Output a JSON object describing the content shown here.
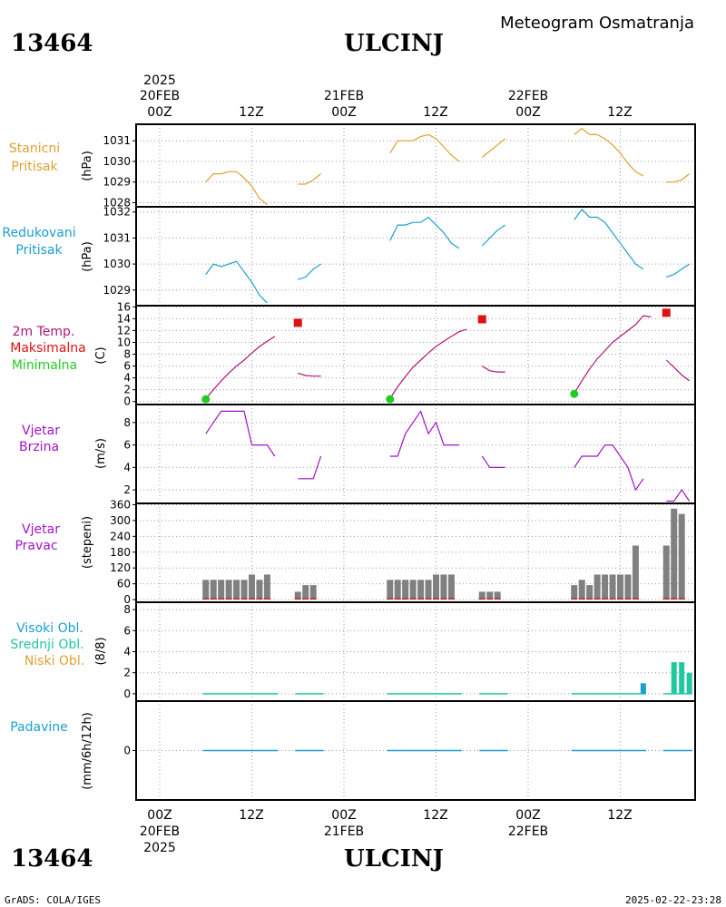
{
  "header": {
    "station_id": "13464",
    "station_name": "ULCINJ",
    "product": "Meteogram Osmatranja"
  },
  "footer": {
    "credit": "GrADS: COLA/IGES",
    "timestamp": "2025-02-22-23:28"
  },
  "time_axis": {
    "year": "2025",
    "days": [
      "20FEB",
      "21FEB",
      "22FEB"
    ],
    "tick_labels": [
      "00Z",
      "12Z",
      "00Z",
      "12Z",
      "00Z",
      "12Z"
    ]
  },
  "colors": {
    "pressure_station": "#e0a030",
    "pressure_reduced": "#1aa0d0",
    "temp_line": "#b0147a",
    "temp_max": "#e01010",
    "temp_min": "#22cc22",
    "wind": "#a014c8",
    "dir_bar": "#808080",
    "dir_base": "#c03030",
    "cloud_high": "#1aa0d0",
    "cloud_mid": "#20c8a0",
    "cloud_low": "#e0a030",
    "precip": "#1aa0d0"
  },
  "panels": {
    "p1": {
      "labels": [
        "Stanicni",
        "Pritisak"
      ],
      "unit": "(hPa)"
    },
    "p2": {
      "labels": [
        "Redukovani",
        "Pritisak"
      ],
      "unit": "(hPa)"
    },
    "p3": {
      "labels": [
        "2m Temp.",
        "Maksimalna",
        "Minimalna"
      ],
      "unit": "(C)"
    },
    "p4": {
      "labels": [
        "Vjetar",
        "Brzina"
      ],
      "unit": "(m/s)"
    },
    "p5": {
      "labels": [
        "Vjetar",
        "Pravac"
      ],
      "unit": "(stepeni)"
    },
    "p6": {
      "labels": [
        "Visoki Obl.",
        "Srednji Obl.",
        "Niski Obl."
      ],
      "unit": "(8/8)"
    },
    "p7": {
      "labels": [
        "Padavine"
      ],
      "unit": "(mm/6h/12h)"
    }
  },
  "chart_data": [
    {
      "type": "line",
      "title": "Stanicni Pritisak",
      "ylabel": "(hPa)",
      "ylim": [
        1027.8,
        1031.8
      ],
      "yticks": [
        1028,
        1029,
        1030,
        1031
      ],
      "x_unit": "hours since 20FEB 00Z",
      "segments": [
        [
          [
            6,
            1029.0
          ],
          [
            7,
            1029.4
          ],
          [
            8,
            1029.4
          ],
          [
            9,
            1029.5
          ],
          [
            10,
            1029.5
          ],
          [
            11,
            1029.2
          ],
          [
            12,
            1028.8
          ],
          [
            13,
            1028.2
          ],
          [
            14,
            1027.9
          ]
        ],
        [
          [
            18,
            1028.9
          ],
          [
            19,
            1028.9
          ],
          [
            20,
            1029.1
          ],
          [
            21,
            1029.4
          ]
        ],
        [
          [
            30,
            1030.4
          ],
          [
            31,
            1031.0
          ],
          [
            32,
            1031.0
          ],
          [
            33,
            1031.0
          ],
          [
            34,
            1031.2
          ],
          [
            35,
            1031.3
          ],
          [
            36,
            1031.1
          ],
          [
            37,
            1030.7
          ],
          [
            38,
            1030.3
          ],
          [
            39,
            1030.0
          ]
        ],
        [
          [
            42,
            1030.2
          ],
          [
            43,
            1030.5
          ],
          [
            44,
            1030.8
          ],
          [
            45,
            1031.1
          ]
        ],
        [
          [
            54,
            1031.3
          ],
          [
            55,
            1031.6
          ],
          [
            56,
            1031.3
          ],
          [
            57,
            1031.3
          ],
          [
            58,
            1031.1
          ],
          [
            59,
            1030.8
          ],
          [
            60,
            1030.4
          ],
          [
            61,
            1029.9
          ],
          [
            62,
            1029.5
          ],
          [
            63,
            1029.3
          ]
        ],
        [
          [
            66,
            1029.0
          ],
          [
            67,
            1029.0
          ],
          [
            68,
            1029.1
          ],
          [
            69,
            1029.4
          ]
        ]
      ]
    },
    {
      "type": "line",
      "title": "Redukovani Pritisak",
      "ylabel": "(hPa)",
      "ylim": [
        1028.4,
        1032.2
      ],
      "yticks": [
        1029,
        1030,
        1031,
        1032
      ],
      "x_unit": "hours since 20FEB 00Z",
      "segments": [
        [
          [
            6,
            1029.6
          ],
          [
            7,
            1030.0
          ],
          [
            8,
            1029.9
          ],
          [
            9,
            1030.0
          ],
          [
            10,
            1030.1
          ],
          [
            11,
            1029.7
          ],
          [
            12,
            1029.3
          ],
          [
            13,
            1028.8
          ],
          [
            14,
            1028.5
          ]
        ],
        [
          [
            18,
            1029.4
          ],
          [
            19,
            1029.5
          ],
          [
            20,
            1029.8
          ],
          [
            21,
            1030.0
          ]
        ],
        [
          [
            30,
            1030.9
          ],
          [
            31,
            1031.5
          ],
          [
            32,
            1031.5
          ],
          [
            33,
            1031.6
          ],
          [
            34,
            1031.6
          ],
          [
            35,
            1031.8
          ],
          [
            36,
            1031.5
          ],
          [
            37,
            1031.2
          ],
          [
            38,
            1030.8
          ],
          [
            39,
            1030.6
          ]
        ],
        [
          [
            42,
            1030.7
          ],
          [
            43,
            1031.0
          ],
          [
            44,
            1031.3
          ],
          [
            45,
            1031.5
          ]
        ],
        [
          [
            54,
            1031.7
          ],
          [
            55,
            1032.1
          ],
          [
            56,
            1031.8
          ],
          [
            57,
            1031.8
          ],
          [
            58,
            1031.6
          ],
          [
            59,
            1031.2
          ],
          [
            60,
            1030.8
          ],
          [
            61,
            1030.4
          ],
          [
            62,
            1030.0
          ],
          [
            63,
            1029.8
          ]
        ],
        [
          [
            66,
            1029.5
          ],
          [
            67,
            1029.6
          ],
          [
            68,
            1029.8
          ],
          [
            69,
            1030.0
          ]
        ]
      ]
    },
    {
      "type": "line",
      "title": "2m Temp.",
      "ylabel": "(C)",
      "ylim": [
        -0.5,
        16.2
      ],
      "yticks": [
        0,
        2,
        4,
        6,
        8,
        10,
        12,
        14,
        16
      ],
      "x_unit": "hours since 20FEB 00Z",
      "segments": [
        [
          [
            6,
            0.5
          ],
          [
            7,
            2.0
          ],
          [
            8,
            3.5
          ],
          [
            9,
            4.8
          ],
          [
            10,
            6.0
          ],
          [
            11,
            7.0
          ],
          [
            12,
            8.2
          ],
          [
            13,
            9.3
          ],
          [
            14,
            10.2
          ],
          [
            15,
            11.0
          ]
        ],
        [
          [
            18,
            4.8
          ],
          [
            19,
            4.4
          ],
          [
            20,
            4.3
          ],
          [
            21,
            4.3
          ]
        ],
        [
          [
            30,
            0.5
          ],
          [
            31,
            2.5
          ],
          [
            32,
            4.2
          ],
          [
            33,
            5.8
          ],
          [
            34,
            7.0
          ],
          [
            35,
            8.2
          ],
          [
            36,
            9.3
          ],
          [
            37,
            10.2
          ],
          [
            38,
            11.0
          ],
          [
            39,
            11.8
          ],
          [
            40,
            12.2
          ]
        ],
        [
          [
            42,
            6.0
          ],
          [
            43,
            5.2
          ],
          [
            44,
            5.0
          ],
          [
            45,
            5.0
          ]
        ],
        [
          [
            54,
            1.4
          ],
          [
            55,
            3.5
          ],
          [
            56,
            5.5
          ],
          [
            57,
            7.2
          ],
          [
            58,
            8.6
          ],
          [
            59,
            10.0
          ],
          [
            60,
            11.0
          ],
          [
            61,
            12.0
          ],
          [
            62,
            13.0
          ],
          [
            63,
            14.5
          ],
          [
            64,
            14.3
          ]
        ],
        [
          [
            66,
            7.0
          ],
          [
            67,
            5.8
          ],
          [
            68,
            4.5
          ],
          [
            69,
            3.5
          ]
        ]
      ],
      "maxima": [
        [
          18,
          13.3
        ],
        [
          42,
          13.9
        ],
        [
          66,
          15.0
        ]
      ],
      "minima": [
        [
          6,
          0.4
        ],
        [
          30,
          0.4
        ],
        [
          54,
          1.3
        ]
      ]
    },
    {
      "type": "line",
      "title": "Vjetar Brzina",
      "ylabel": "(m/s)",
      "ylim": [
        0.8,
        9.6
      ],
      "yticks": [
        2,
        4,
        6,
        8
      ],
      "x_unit": "hours since 20FEB 00Z",
      "segments": [
        [
          [
            6,
            7
          ],
          [
            7,
            8
          ],
          [
            8,
            9
          ],
          [
            9,
            9
          ],
          [
            10,
            9
          ],
          [
            11,
            9
          ],
          [
            12,
            6
          ],
          [
            13,
            6
          ],
          [
            14,
            6
          ],
          [
            15,
            5
          ]
        ],
        [
          [
            18,
            3
          ],
          [
            19,
            3
          ],
          [
            20,
            3
          ],
          [
            21,
            5
          ]
        ],
        [
          [
            30,
            5
          ],
          [
            31,
            5
          ],
          [
            32,
            7
          ],
          [
            33,
            8
          ],
          [
            34,
            9
          ],
          [
            35,
            7
          ],
          [
            36,
            8
          ],
          [
            37,
            6
          ],
          [
            38,
            6
          ],
          [
            39,
            6
          ]
        ],
        [
          [
            42,
            5
          ],
          [
            43,
            4
          ],
          [
            44,
            4
          ],
          [
            45,
            4
          ]
        ],
        [
          [
            54,
            4
          ],
          [
            55,
            5
          ],
          [
            56,
            5
          ],
          [
            57,
            5
          ],
          [
            58,
            6
          ],
          [
            59,
            6
          ],
          [
            60,
            5
          ],
          [
            61,
            4
          ],
          [
            62,
            2
          ],
          [
            63,
            3
          ]
        ],
        [
          [
            66,
            1
          ],
          [
            67,
            1
          ],
          [
            68,
            2
          ],
          [
            69,
            1
          ]
        ]
      ]
    },
    {
      "type": "bar",
      "title": "Vjetar Pravac",
      "ylabel": "(stepeni)",
      "ylim": [
        -10,
        365
      ],
      "yticks": [
        0,
        60,
        120,
        180,
        240,
        300,
        360
      ],
      "x_unit": "hours since 20FEB 00Z",
      "bars": [
        [
          6,
          75
        ],
        [
          7,
          75
        ],
        [
          8,
          75
        ],
        [
          9,
          75
        ],
        [
          10,
          75
        ],
        [
          11,
          75
        ],
        [
          12,
          95
        ],
        [
          13,
          75
        ],
        [
          14,
          95
        ],
        [
          18,
          30
        ],
        [
          19,
          55
        ],
        [
          20,
          55
        ],
        [
          30,
          75
        ],
        [
          31,
          75
        ],
        [
          32,
          75
        ],
        [
          33,
          75
        ],
        [
          34,
          75
        ],
        [
          35,
          75
        ],
        [
          36,
          95
        ],
        [
          37,
          95
        ],
        [
          38,
          95
        ],
        [
          42,
          30
        ],
        [
          43,
          30
        ],
        [
          44,
          30
        ],
        [
          54,
          55
        ],
        [
          55,
          75
        ],
        [
          56,
          55
        ],
        [
          57,
          95
        ],
        [
          58,
          95
        ],
        [
          59,
          95
        ],
        [
          60,
          95
        ],
        [
          61,
          95
        ],
        [
          62,
          205
        ],
        [
          66,
          205
        ],
        [
          67,
          345
        ],
        [
          68,
          325
        ]
      ]
    },
    {
      "type": "bar",
      "title": "Visoki Obl. / Srednji Obl. / Niski Obl.",
      "ylabel": "(8/8)",
      "ylim": [
        -0.7,
        8.7
      ],
      "yticks": [
        0,
        2,
        4,
        6,
        8
      ],
      "x_unit": "hours since 20FEB 00Z",
      "series": [
        {
          "key": "high",
          "bars": [
            [
              63,
              1
            ]
          ]
        },
        {
          "key": "mid",
          "bars": [
            [
              67,
              3
            ],
            [
              68,
              3
            ],
            [
              69,
              2
            ]
          ]
        },
        {
          "key": "low",
          "bars": []
        }
      ],
      "zero_ranges": [
        [
          6,
          15
        ],
        [
          18,
          21
        ],
        [
          30,
          39
        ],
        [
          42,
          45
        ],
        [
          54,
          63
        ],
        [
          66,
          69
        ]
      ]
    },
    {
      "type": "bar",
      "title": "Padavine",
      "ylabel": "(mm/6h/12h)",
      "ylim": [
        -1,
        1
      ],
      "yticks": [
        0
      ],
      "x_unit": "hours since 20FEB 00Z",
      "zero_ranges": [
        [
          6,
          15
        ],
        [
          18,
          21
        ],
        [
          30,
          39
        ],
        [
          42,
          45
        ],
        [
          54,
          63
        ],
        [
          66,
          69
        ]
      ]
    }
  ]
}
